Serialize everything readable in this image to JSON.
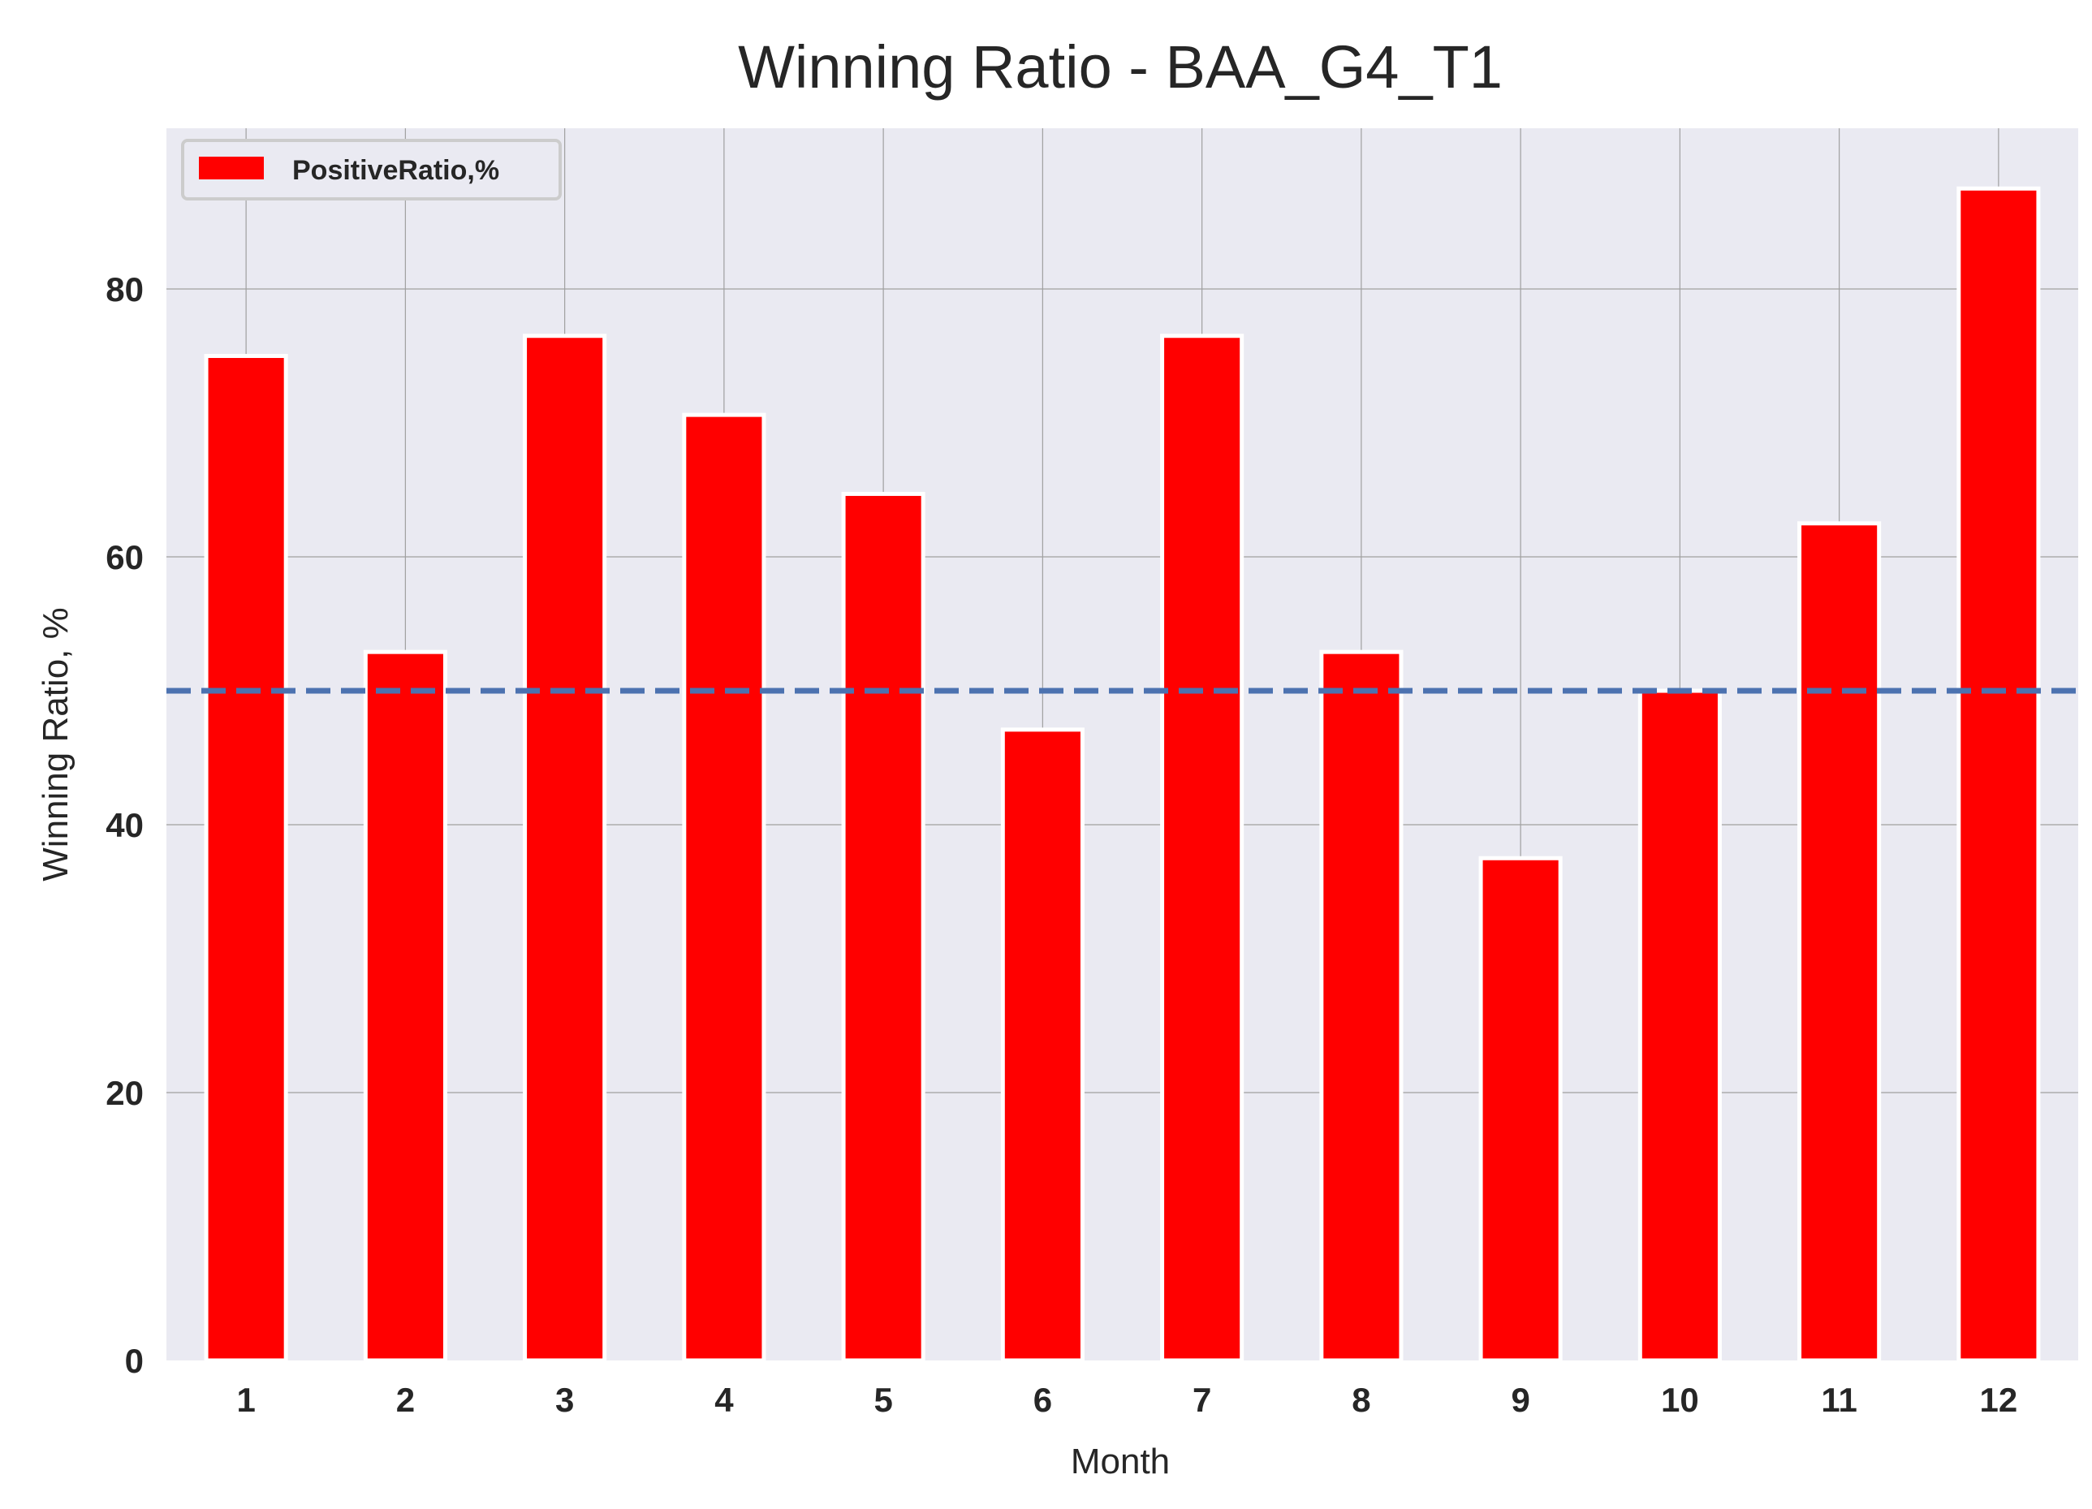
{
  "chart_data": {
    "type": "bar",
    "title": "Winning Ratio - BAA_G4_T1",
    "xlabel": "Month",
    "ylabel": "Winning Ratio, %",
    "categories": [
      "1",
      "2",
      "3",
      "4",
      "5",
      "6",
      "7",
      "8",
      "9",
      "10",
      "11",
      "12"
    ],
    "series": [
      {
        "name": "PositiveRatio,%",
        "color": "#ff0000",
        "values": [
          75.0,
          52.9,
          76.5,
          70.6,
          64.7,
          47.1,
          76.5,
          52.9,
          37.5,
          50.0,
          62.5,
          87.5
        ]
      }
    ],
    "reference_line": {
      "y": 50,
      "style": "dashed",
      "color": "#4c72b0"
    },
    "ylim": [
      0,
      92
    ],
    "yticks": [
      0,
      20,
      40,
      60,
      80
    ],
    "grid": true,
    "background": "#eaeaf2",
    "legend": {
      "placement": "top-left"
    }
  }
}
